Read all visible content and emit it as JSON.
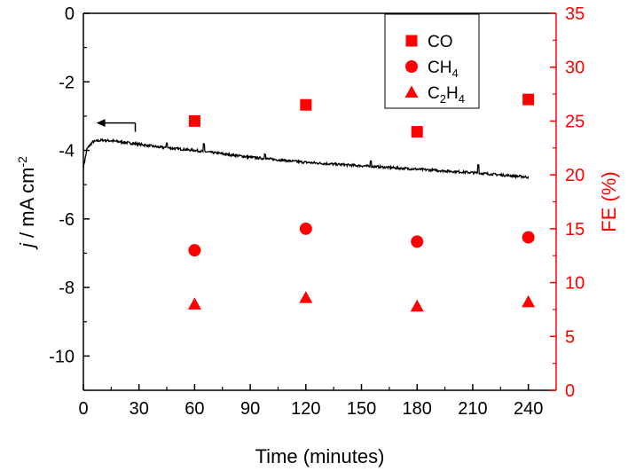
{
  "chart_data": {
    "type": "scatter",
    "title": "",
    "xlabel": "Time (minutes)",
    "xlim": [
      0,
      255
    ],
    "xticks": [
      "0",
      "30",
      "60",
      "90",
      "120",
      "150",
      "180",
      "210",
      "240"
    ],
    "ylabel_left": {
      "italic": "j",
      "rest": " / mA cm",
      "sup": "-2"
    },
    "ylim_left": [
      -11,
      0
    ],
    "yticks_left": [
      "0",
      "-2",
      "-4",
      "-6",
      "-8",
      "-10"
    ],
    "ylabel_right": "FE (%)",
    "ylim_right": [
      0,
      35
    ],
    "yticks_right": [
      "0",
      "5",
      "10",
      "15",
      "20",
      "25",
      "30",
      "35"
    ],
    "axis_colors": {
      "left": "#000000",
      "right": "#ff0000"
    },
    "current_series": {
      "name": "current density",
      "axis": "left",
      "color": "#000000",
      "x": [
        0,
        2,
        5,
        10,
        15,
        20,
        30,
        40,
        60,
        90,
        120,
        150,
        180,
        210,
        240
      ],
      "y": [
        -4.5,
        -3.95,
        -3.75,
        -3.7,
        -3.72,
        -3.75,
        -3.82,
        -3.9,
        -4.0,
        -4.2,
        -4.35,
        -4.45,
        -4.55,
        -4.65,
        -4.78
      ],
      "spikes": [
        {
          "x": 45,
          "dy": 0.15
        },
        {
          "x": 65,
          "dy": 0.2
        },
        {
          "x": 98,
          "dy": 0.15
        },
        {
          "x": 155,
          "dy": 0.15
        },
        {
          "x": 213,
          "dy": 0.25
        }
      ]
    },
    "series": [
      {
        "name": "CO",
        "marker": "square",
        "color": "#ff0000",
        "x": [
          60,
          120,
          180,
          240
        ],
        "values": [
          25.0,
          26.5,
          24.0,
          27.0
        ]
      },
      {
        "name": "CH4",
        "marker": "circle",
        "color": "#ff0000",
        "x": [
          60,
          120,
          180,
          240
        ],
        "values": [
          13.0,
          15.0,
          13.8,
          14.2
        ]
      },
      {
        "name": "C2H4",
        "marker": "triangle",
        "color": "#ff0000",
        "x": [
          60,
          120,
          180,
          240
        ],
        "values": [
          8.0,
          8.6,
          7.8,
          8.2
        ]
      }
    ],
    "legend": {
      "position": "top-right",
      "entries": [
        {
          "marker": "square",
          "base": "CO",
          "sub": ""
        },
        {
          "marker": "circle",
          "base": "CH",
          "sub": "4"
        },
        {
          "marker": "triangle",
          "base": "C",
          "sub": "2",
          "base2": "H",
          "sub2": "4"
        }
      ]
    },
    "annotation": {
      "type": "arrow",
      "direction": "left",
      "meaning": "current density on left axis"
    }
  }
}
